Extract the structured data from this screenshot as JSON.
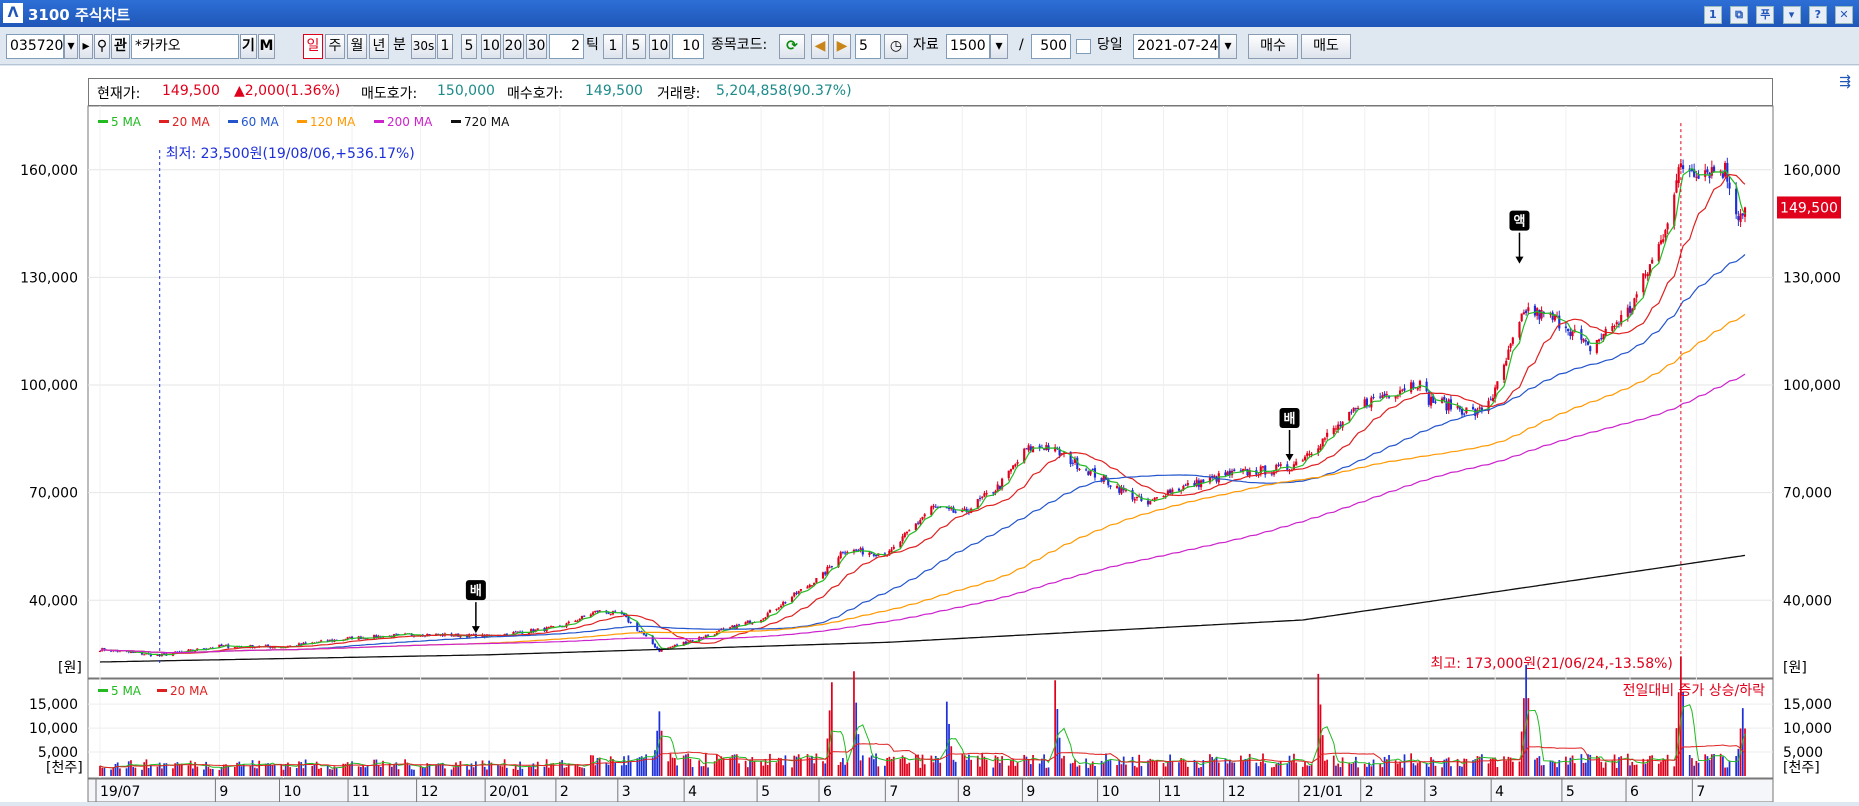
{
  "window": {
    "title": "3100 주식차트",
    "buttons": [
      "1",
      "⧉",
      "푸",
      "▾",
      "?",
      "✕"
    ]
  },
  "toolbar": {
    "code": "035720",
    "name": "*카카오",
    "btn_gi": "기",
    "btn_m": "M",
    "btn_related": "관",
    "periods": [
      "일",
      "주",
      "월",
      "년"
    ],
    "active_period": "일",
    "minute_label": "분",
    "minutes": [
      "30s",
      "1",
      "5",
      "10",
      "20",
      "30"
    ],
    "minute_custom": "2",
    "tick_label": "틱",
    "ticks": [
      "1",
      "5",
      "10"
    ],
    "tick_custom": "10",
    "code_label": "종목코드:",
    "step_value": "5",
    "data_label": "자료",
    "data_count": "1500",
    "slash": "/",
    "display_count": "500",
    "same_day_label": "당일",
    "date": "2021-07-24",
    "buy_label": "매수",
    "sell_label": "매도"
  },
  "quote": {
    "price_label": "현재가:",
    "price": "149,500",
    "change": "▲2,000(1.36%)",
    "ask_label": "매도호가:",
    "ask": "150,000",
    "bid_label": "매수호가:",
    "bid": "149,500",
    "volume_label": "거래량:",
    "volume": "5,204,858(90.37%)"
  },
  "colors": {
    "up": "#e0001b",
    "down": "#1d2fd8",
    "ma5": "#22bb22",
    "ma20": "#e02020",
    "ma60": "#2255cc",
    "ma120": "#ff9900",
    "ma200": "#cc22cc",
    "ma720": "#111111"
  },
  "annotations": {
    "low": "최저: 23,500원(19/08/06,+536.17%)",
    "low_date": "2019-08-06",
    "high": "최고: 173,000원(21/06/24,-13.58%)",
    "high_date": "2021-06-24",
    "current_tag": "149,500",
    "markers": [
      {
        "label": "배",
        "date": "2019-12-27",
        "price": 30000
      },
      {
        "label": "배",
        "date": "2020-12-29",
        "price": 78000
      },
      {
        "label": "액",
        "date": "2021-04-12",
        "price": 133000
      }
    ],
    "price_unit": "[원]",
    "volume_unit": "[천주]",
    "volume_legend": "전일대비 증가 상승/하락"
  },
  "chart_data": {
    "type": "candlestick",
    "start_date": "2019-07-10",
    "end_date": "2021-07-23",
    "ylim": [
      20000,
      175000
    ],
    "yticks": [
      40000,
      70000,
      100000,
      130000,
      160000
    ],
    "ytick_labels": [
      "40,000",
      "70,000",
      "100,000",
      "130,000",
      "160,000"
    ],
    "xticks": [
      {
        "date": "2019-07-10",
        "label": "19/07"
      },
      {
        "date": "2019-09-02",
        "label": "9"
      },
      {
        "date": "2019-10-01",
        "label": "10"
      },
      {
        "date": "2019-11-01",
        "label": "11"
      },
      {
        "date": "2019-12-02",
        "label": "12"
      },
      {
        "date": "2020-01-02",
        "label": "20/01"
      },
      {
        "date": "2020-02-03",
        "label": "2"
      },
      {
        "date": "2020-03-02",
        "label": "3"
      },
      {
        "date": "2020-04-01",
        "label": "4"
      },
      {
        "date": "2020-05-04",
        "label": "5"
      },
      {
        "date": "2020-06-01",
        "label": "6"
      },
      {
        "date": "2020-07-01",
        "label": "7"
      },
      {
        "date": "2020-08-03",
        "label": "8"
      },
      {
        "date": "2020-09-01",
        "label": "9"
      },
      {
        "date": "2020-10-05",
        "label": "10"
      },
      {
        "date": "2020-11-02",
        "label": "11"
      },
      {
        "date": "2020-12-01",
        "label": "12"
      },
      {
        "date": "2021-01-04",
        "label": "21/01"
      },
      {
        "date": "2021-02-01",
        "label": "2"
      },
      {
        "date": "2021-03-02",
        "label": "3"
      },
      {
        "date": "2021-04-01",
        "label": "4"
      },
      {
        "date": "2021-05-03",
        "label": "5"
      },
      {
        "date": "2021-06-01",
        "label": "6"
      },
      {
        "date": "2021-07-01",
        "label": "7"
      }
    ],
    "close_anchors": [
      {
        "date": "2019-07-10",
        "close": 26300
      },
      {
        "date": "2019-08-06",
        "close": 24600
      },
      {
        "date": "2019-09-02",
        "close": 27200
      },
      {
        "date": "2019-10-01",
        "close": 27000
      },
      {
        "date": "2019-11-01",
        "close": 29500
      },
      {
        "date": "2019-12-02",
        "close": 30500
      },
      {
        "date": "2020-01-02",
        "close": 30000
      },
      {
        "date": "2020-02-03",
        "close": 32500
      },
      {
        "date": "2020-02-20",
        "close": 37000
      },
      {
        "date": "2020-03-02",
        "close": 36000
      },
      {
        "date": "2020-03-19",
        "close": 26000
      },
      {
        "date": "2020-04-01",
        "close": 28500
      },
      {
        "date": "2020-05-04",
        "close": 35000
      },
      {
        "date": "2020-06-01",
        "close": 47000
      },
      {
        "date": "2020-06-10",
        "close": 54000
      },
      {
        "date": "2020-07-01",
        "close": 53000
      },
      {
        "date": "2020-07-20",
        "close": 66000
      },
      {
        "date": "2020-08-03",
        "close": 64000
      },
      {
        "date": "2020-08-20",
        "close": 72000
      },
      {
        "date": "2020-09-01",
        "close": 82000
      },
      {
        "date": "2020-09-10",
        "close": 83000
      },
      {
        "date": "2020-10-05",
        "close": 74000
      },
      {
        "date": "2020-10-26",
        "close": 66500
      },
      {
        "date": "2020-11-02",
        "close": 70000
      },
      {
        "date": "2020-12-01",
        "close": 75000
      },
      {
        "date": "2020-12-29",
        "close": 77000
      },
      {
        "date": "2021-01-04",
        "close": 80000
      },
      {
        "date": "2021-01-25",
        "close": 91000
      },
      {
        "date": "2021-02-01",
        "close": 95000
      },
      {
        "date": "2021-02-25",
        "close": 101000
      },
      {
        "date": "2021-03-02",
        "close": 96000
      },
      {
        "date": "2021-03-24",
        "close": 92000
      },
      {
        "date": "2021-04-01",
        "close": 98000
      },
      {
        "date": "2021-04-09",
        "close": 112000
      },
      {
        "date": "2021-04-15",
        "close": 121000
      },
      {
        "date": "2021-05-03",
        "close": 117000
      },
      {
        "date": "2021-05-13",
        "close": 110000
      },
      {
        "date": "2021-06-01",
        "close": 121000
      },
      {
        "date": "2021-06-15",
        "close": 140000
      },
      {
        "date": "2021-06-24",
        "close": 161000
      },
      {
        "date": "2021-07-01",
        "close": 160000
      },
      {
        "date": "2021-07-14",
        "close": 160000
      },
      {
        "date": "2021-07-20",
        "close": 147500
      },
      {
        "date": "2021-07-23",
        "close": 149500
      }
    ],
    "moving_averages": [
      {
        "name": "5 MA",
        "color": "#22bb22",
        "period": 5
      },
      {
        "name": "20 MA",
        "color": "#e02020",
        "period": 20
      },
      {
        "name": "60 MA",
        "color": "#2255cc",
        "period": 60
      },
      {
        "name": "120 MA",
        "color": "#ff9900",
        "period": 120
      },
      {
        "name": "200 MA",
        "color": "#cc22cc",
        "period": 200
      },
      {
        "name": "720 MA",
        "color": "#111111",
        "period": 720
      }
    ],
    "ma720_anchors": [
      {
        "date": "2019-07-10",
        "value": 22800
      },
      {
        "date": "2020-01-02",
        "value": 24800
      },
      {
        "date": "2020-07-01",
        "value": 28300
      },
      {
        "date": "2021-01-04",
        "value": 34500
      },
      {
        "date": "2021-07-23",
        "value": 52500
      }
    ],
    "volume": {
      "ylim": [
        0,
        19000
      ],
      "yticks": [
        5000,
        10000,
        15000
      ],
      "ytick_labels": [
        "5,000",
        "10,000",
        "15,000"
      ],
      "moving_averages": [
        {
          "name": "5 MA",
          "color": "#22bb22",
          "period": 5
        },
        {
          "name": "20 MA",
          "color": "#e02020",
          "period": 20
        }
      ],
      "base": 2500,
      "peaks": [
        {
          "date": "2020-03-19",
          "value": 10000
        },
        {
          "date": "2020-06-05",
          "value": 14500
        },
        {
          "date": "2020-06-15",
          "value": 16200
        },
        {
          "date": "2020-07-27",
          "value": 11500
        },
        {
          "date": "2020-09-14",
          "value": 14800
        },
        {
          "date": "2021-01-11",
          "value": 15800
        },
        {
          "date": "2021-04-15",
          "value": 17200
        },
        {
          "date": "2021-06-24",
          "value": 18500
        },
        {
          "date": "2021-07-22",
          "value": 10500
        }
      ]
    }
  }
}
